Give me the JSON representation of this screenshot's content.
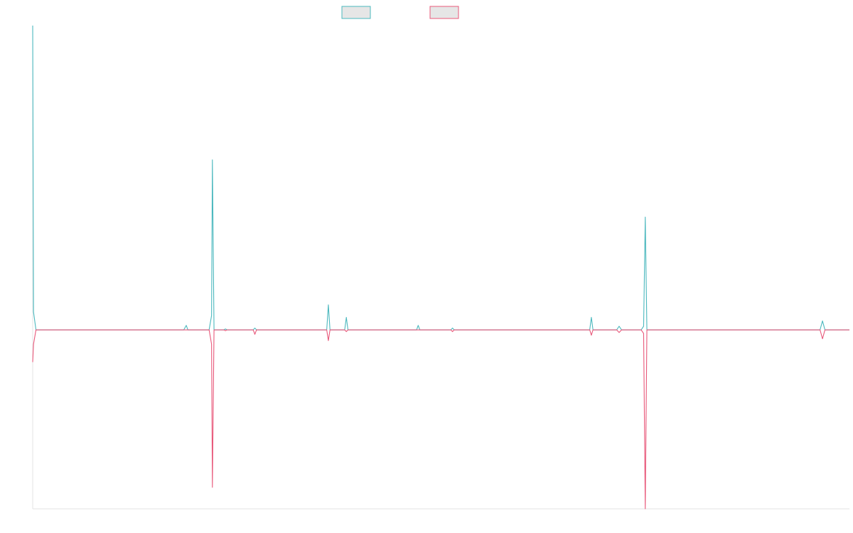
{
  "chart_data": {
    "type": "line",
    "title": "",
    "xlabel": "",
    "ylabel": "",
    "grid": false,
    "legend": {
      "position": "top-center",
      "entries": [
        {
          "label": "",
          "color": "#4bb8be",
          "fill": "#e6e6e6"
        },
        {
          "label": "",
          "color": "#e8587a",
          "fill": "#e6e6e6"
        }
      ]
    },
    "xlim": [
      0,
      1000
    ],
    "ylim": [
      -100,
      170
    ],
    "series": [
      {
        "name": "",
        "color": "#4bb8be",
        "points": [
          [
            0,
            170
          ],
          [
            1,
            10
          ],
          [
            4,
            0
          ],
          [
            185,
            0
          ],
          [
            188,
            2.5
          ],
          [
            190,
            0
          ],
          [
            216,
            0
          ],
          [
            219,
            8
          ],
          [
            220,
            95
          ],
          [
            222,
            0
          ],
          [
            234,
            0
          ],
          [
            236,
            0.5
          ],
          [
            238,
            0
          ],
          [
            270,
            0
          ],
          [
            272,
            1
          ],
          [
            274,
            0
          ],
          [
            360,
            0
          ],
          [
            362,
            14
          ],
          [
            364,
            0
          ],
          [
            382,
            0
          ],
          [
            384,
            7
          ],
          [
            386,
            0
          ],
          [
            470,
            0
          ],
          [
            472,
            2.5
          ],
          [
            474,
            0
          ],
          [
            512,
            0
          ],
          [
            514,
            1
          ],
          [
            516,
            0
          ],
          [
            682,
            0
          ],
          [
            684,
            7
          ],
          [
            686,
            0
          ],
          [
            715,
            0
          ],
          [
            718,
            2
          ],
          [
            721,
            0
          ],
          [
            745,
            0
          ],
          [
            748,
            2
          ],
          [
            750,
            63
          ],
          [
            752,
            0
          ],
          [
            964,
            0
          ],
          [
            967,
            5
          ],
          [
            970,
            0
          ],
          [
            1000,
            0
          ]
        ]
      },
      {
        "name": "",
        "color": "#e8587a",
        "points": [
          [
            0,
            -18
          ],
          [
            1,
            -8
          ],
          [
            4,
            0
          ],
          [
            216,
            0
          ],
          [
            219,
            -8
          ],
          [
            220,
            -88
          ],
          [
            222,
            0
          ],
          [
            234,
            0
          ],
          [
            236,
            -0.5
          ],
          [
            238,
            0
          ],
          [
            270,
            0
          ],
          [
            272,
            -2.5
          ],
          [
            274,
            0
          ],
          [
            360,
            0
          ],
          [
            362,
            -6
          ],
          [
            364,
            0
          ],
          [
            382,
            0
          ],
          [
            384,
            -1
          ],
          [
            386,
            0
          ],
          [
            512,
            0
          ],
          [
            514,
            -1
          ],
          [
            516,
            0
          ],
          [
            682,
            0
          ],
          [
            684,
            -3
          ],
          [
            686,
            0
          ],
          [
            715,
            0
          ],
          [
            718,
            -1.5
          ],
          [
            721,
            0
          ],
          [
            745,
            0
          ],
          [
            748,
            -2
          ],
          [
            750,
            -100
          ],
          [
            752,
            0
          ],
          [
            964,
            0
          ],
          [
            967,
            -5
          ],
          [
            970,
            0
          ],
          [
            1000,
            0
          ]
        ]
      }
    ]
  }
}
